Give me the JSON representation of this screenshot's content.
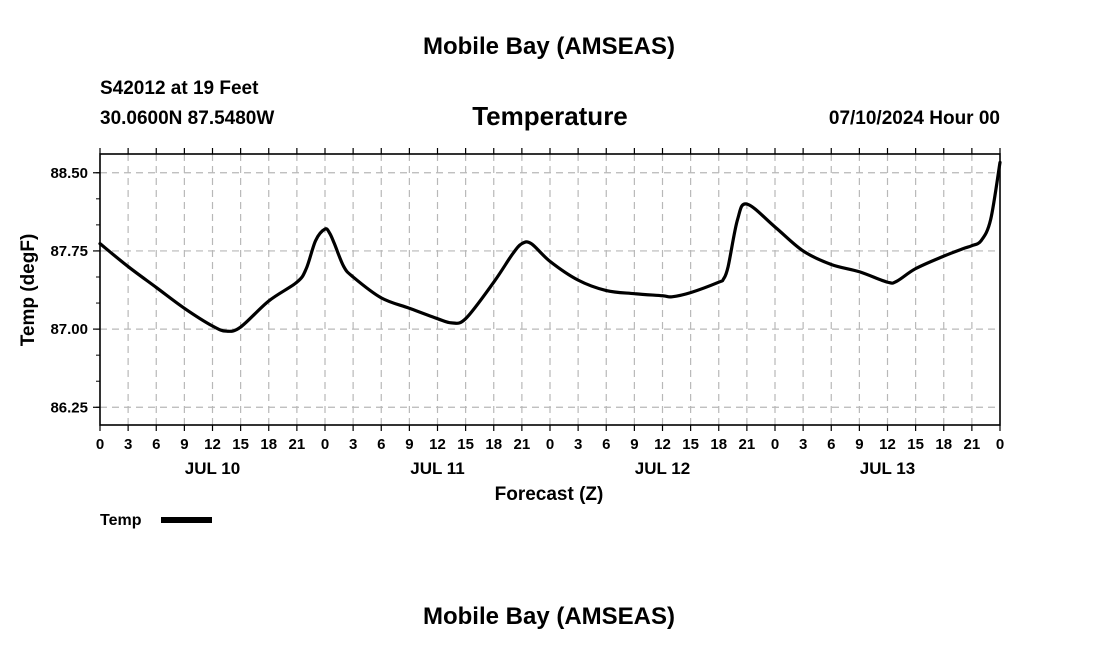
{
  "header": {
    "title": "Mobile Bay (AMSEAS)",
    "station": "S42012 at 19 Feet",
    "location": "30.0600N  87.5480W",
    "datetime": "07/10/2024 Hour 00",
    "footer_title": "Mobile Bay (AMSEAS)"
  },
  "chart_data": {
    "type": "line",
    "title": "Temperature",
    "xlabel": "Forecast (Z)",
    "ylabel": "Temp (degF)",
    "xlim": [
      0,
      96
    ],
    "ylim": [
      86.08,
      88.68
    ],
    "yticks": [
      86.25,
      87.0,
      87.75,
      88.5
    ],
    "ytick_labels": [
      "86.25",
      "87.00",
      "87.75",
      "88.50"
    ],
    "xtick_step_hours": 3,
    "xtick_labels": [
      "0",
      "3",
      "6",
      "9",
      "12",
      "15",
      "18",
      "21",
      "0",
      "3",
      "6",
      "9",
      "12",
      "15",
      "18",
      "21",
      "0",
      "3",
      "6",
      "9",
      "12",
      "15",
      "18",
      "21",
      "0",
      "3",
      "6",
      "9",
      "12",
      "15",
      "18",
      "21",
      "0"
    ],
    "day_labels": [
      {
        "hour": 12,
        "label": "JUL 10"
      },
      {
        "hour": 36,
        "label": "JUL 11"
      },
      {
        "hour": 60,
        "label": "JUL 12"
      },
      {
        "hour": 84,
        "label": "JUL 13"
      }
    ],
    "grid": true,
    "series": [
      {
        "name": "Temp",
        "color": "#000000",
        "x": [
          0,
          3,
          6,
          9,
          12,
          13.5,
          15,
          18,
          21,
          22,
          23,
          24,
          24.5,
          25,
          26,
          27,
          30,
          33,
          36,
          37.5,
          39,
          42,
          44,
          45,
          46,
          48,
          51,
          54,
          57,
          60,
          61,
          63,
          66,
          66.5,
          67,
          68,
          69,
          72,
          75,
          78,
          81,
          84,
          85,
          87,
          90,
          92,
          93,
          94,
          95,
          96
        ],
        "values": [
          87.82,
          87.6,
          87.4,
          87.2,
          87.03,
          86.98,
          87.02,
          87.27,
          87.45,
          87.58,
          87.85,
          87.96,
          87.92,
          87.82,
          87.6,
          87.5,
          87.3,
          87.2,
          87.1,
          87.06,
          87.1,
          87.45,
          87.72,
          87.82,
          87.82,
          87.65,
          87.47,
          87.37,
          87.34,
          87.32,
          87.31,
          87.35,
          87.45,
          87.48,
          87.6,
          88.05,
          88.2,
          87.98,
          87.75,
          87.62,
          87.55,
          87.45,
          87.46,
          87.58,
          87.7,
          87.77,
          87.8,
          87.85,
          88.05,
          88.6
        ]
      }
    ],
    "legend": {
      "label": "Temp",
      "position": "bottom-left"
    }
  }
}
